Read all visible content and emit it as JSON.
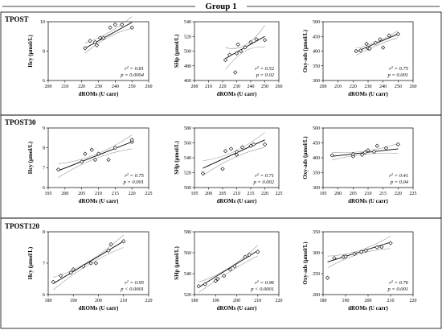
{
  "figure": {
    "group_title": "Group 1"
  },
  "panels": [
    {
      "label": "TPOST",
      "charts": [
        {
          "index": 0
        },
        {
          "index": 1
        },
        {
          "index": 2
        }
      ]
    },
    {
      "label": "TPOST30",
      "charts": [
        {
          "index": 3
        },
        {
          "index": 4
        },
        {
          "index": 5
        }
      ]
    },
    {
      "label": "TPOST120",
      "charts": [
        {
          "index": 6
        },
        {
          "index": 7
        },
        {
          "index": 8
        }
      ]
    }
  ],
  "chart_data": [
    {
      "type": "scatter",
      "panel": "TPOST",
      "xlabel": "dROMs (U carr)",
      "ylabel": "Hcy (µmol/L)",
      "xlim": [
        200,
        260
      ],
      "ylim": [
        6,
        10
      ],
      "xticks": [
        200,
        210,
        220,
        230,
        240,
        250,
        260
      ],
      "yticks": [
        6,
        8,
        10
      ],
      "x": [
        222,
        225,
        228,
        229,
        231,
        233,
        237,
        240,
        244,
        250
      ],
      "y": [
        8.2,
        8.7,
        8.6,
        8.4,
        8.9,
        8.9,
        9.6,
        9.8,
        9.8,
        9.6
      ],
      "fit": [
        [
          222,
          8.2
        ],
        [
          250,
          9.95
        ]
      ],
      "ci_upper": [
        [
          222,
          8.55
        ],
        [
          236,
          9.25
        ],
        [
          250,
          10.35
        ]
      ],
      "ci_lower": [
        [
          222,
          7.85
        ],
        [
          236,
          8.95
        ],
        [
          250,
          9.55
        ]
      ],
      "r2_text": "0.81",
      "p_text": "= 0.0004",
      "annot_pos": "bottom-right"
    },
    {
      "type": "scatter",
      "panel": "TPOST",
      "xlabel": "dROMs (U carr)",
      "ylabel": "SHp (µmol/L)",
      "xlim": [
        200,
        260
      ],
      "ylim": [
        460,
        540
      ],
      "xticks": [
        200,
        210,
        220,
        230,
        240,
        250,
        260
      ],
      "yticks": [
        460,
        480,
        500,
        520,
        540
      ],
      "x": [
        222,
        225,
        229,
        230,
        231,
        233,
        236,
        240,
        244,
        250
      ],
      "y": [
        488,
        495,
        471,
        497,
        509,
        500,
        505,
        512,
        516,
        515
      ],
      "fit": [
        [
          222,
          490
        ],
        [
          250,
          520
        ]
      ],
      "ci_upper": [
        [
          222,
          505
        ],
        [
          236,
          508
        ],
        [
          250,
          535
        ]
      ],
      "ci_lower": [
        [
          222,
          475
        ],
        [
          236,
          500
        ],
        [
          250,
          505
        ]
      ],
      "r2_text": "0.52",
      "p_text": "= 0.02",
      "annot_pos": "bottom-right"
    },
    {
      "type": "scatter",
      "panel": "TPOST",
      "xlabel": "dROMs (U carr)",
      "ylabel": "Oxy-ads (µmol/L)",
      "xlim": [
        200,
        260
      ],
      "ylim": [
        300,
        500
      ],
      "xticks": [
        200,
        210,
        220,
        230,
        240,
        250,
        260
      ],
      "yticks": [
        300,
        350,
        400,
        450,
        500
      ],
      "x": [
        222,
        225,
        229,
        230,
        231,
        235,
        238,
        240,
        244,
        250
      ],
      "y": [
        400,
        402,
        425,
        410,
        408,
        428,
        440,
        412,
        453,
        458
      ],
      "fit": [
        [
          222,
          398
        ],
        [
          250,
          458
        ]
      ],
      "ci_upper": [
        [
          222,
          410
        ],
        [
          236,
          432
        ],
        [
          250,
          470
        ]
      ],
      "ci_lower": [
        [
          222,
          386
        ],
        [
          236,
          420
        ],
        [
          250,
          446
        ]
      ],
      "r2_text": "0.75",
      "p_text": "= 0.001",
      "annot_pos": "bottom-right"
    },
    {
      "type": "scatter",
      "panel": "TPOST30",
      "xlabel": "dROMs (U carr)",
      "ylabel": "Hcy (µmol/L)",
      "xlim": [
        195,
        225
      ],
      "ylim": [
        6,
        9
      ],
      "xticks": [
        195,
        200,
        205,
        210,
        215,
        220,
        225
      ],
      "yticks": [
        6,
        7,
        8,
        9
      ],
      "x": [
        198,
        205,
        206,
        208,
        209,
        210,
        213,
        215,
        220,
        220
      ],
      "y": [
        6.9,
        7.3,
        7.7,
        7.9,
        7.4,
        7.7,
        7.4,
        8.0,
        8.3,
        8.4
      ],
      "fit": [
        [
          198,
          6.85
        ],
        [
          220,
          8.3
        ]
      ],
      "ci_upper": [
        [
          198,
          7.2
        ],
        [
          209,
          7.65
        ],
        [
          220,
          8.65
        ]
      ],
      "ci_lower": [
        [
          198,
          6.5
        ],
        [
          209,
          7.45
        ],
        [
          220,
          7.95
        ]
      ],
      "r2_text": "0.75",
      "p_text": "= 0.001",
      "annot_pos": "bottom-right"
    },
    {
      "type": "scatter",
      "panel": "TPOST30",
      "xlabel": "dROMs (U carr)",
      "ylabel": "SHp (µmol/L)",
      "xlim": [
        195,
        225
      ],
      "ylim": [
        500,
        580
      ],
      "xticks": [
        195,
        200,
        205,
        210,
        215,
        220,
        225
      ],
      "yticks": [
        500,
        520,
        540,
        560,
        580
      ],
      "x": [
        198,
        205,
        206,
        208,
        210,
        210,
        212,
        215,
        216,
        220
      ],
      "y": [
        519,
        525,
        549,
        552,
        548,
        544,
        554,
        556,
        558,
        558
      ],
      "fit": [
        [
          198,
          526
        ],
        [
          220,
          564
        ]
      ],
      "ci_upper": [
        [
          198,
          536
        ],
        [
          209,
          548
        ],
        [
          220,
          574
        ]
      ],
      "ci_lower": [
        [
          198,
          516
        ],
        [
          209,
          540
        ],
        [
          220,
          554
        ]
      ],
      "r2_text": "0.71",
      "p_text": "= 0.002",
      "annot_pos": "bottom-right"
    },
    {
      "type": "scatter",
      "panel": "TPOST30",
      "xlabel": "dROMs (U carr)",
      "ylabel": "Oxy-ads (µmol/L)",
      "xlim": [
        195,
        225
      ],
      "ylim": [
        300,
        500
      ],
      "xticks": [
        195,
        200,
        205,
        210,
        215,
        220,
        225
      ],
      "yticks": [
        300,
        350,
        400,
        450,
        500
      ],
      "x": [
        198,
        205,
        205,
        208,
        209,
        210,
        212,
        213,
        216,
        220
      ],
      "y": [
        408,
        405,
        412,
        410,
        418,
        425,
        420,
        440,
        432,
        445
      ],
      "fit": [
        [
          198,
          405
        ],
        [
          220,
          430
        ]
      ],
      "ci_upper": [
        [
          198,
          418
        ],
        [
          209,
          422
        ],
        [
          220,
          448
        ]
      ],
      "ci_lower": [
        [
          198,
          392
        ],
        [
          209,
          412
        ],
        [
          220,
          415
        ]
      ],
      "r2_text": "0.41",
      "p_text": "= 0.04",
      "annot_pos": "bottom-right"
    },
    {
      "type": "scatter",
      "panel": "TPOST120",
      "xlabel": "dROMs (U carr)",
      "ylabel": "Hcy (µmol/L)",
      "xlim": [
        180,
        220
      ],
      "ylim": [
        6,
        8
      ],
      "xticks": [
        180,
        190,
        200,
        210,
        220
      ],
      "yticks": [
        6,
        7,
        8
      ],
      "x": [
        182,
        185,
        189,
        190,
        194,
        197,
        199,
        204,
        205,
        210
      ],
      "y": [
        6.4,
        6.6,
        6.7,
        6.8,
        6.9,
        7.0,
        7.0,
        7.4,
        7.6,
        7.7
      ],
      "fit": [
        [
          182,
          6.35
        ],
        [
          210,
          7.7
        ]
      ],
      "ci_upper": [
        [
          182,
          6.55
        ],
        [
          196,
          7.05
        ],
        [
          210,
          7.9
        ]
      ],
      "ci_lower": [
        [
          182,
          6.15
        ],
        [
          196,
          6.95
        ],
        [
          210,
          7.5
        ]
      ],
      "r2_text": "0.95",
      "p_text": "< 0.0001",
      "annot_pos": "bottom-right"
    },
    {
      "type": "scatter",
      "panel": "TPOST120",
      "xlabel": "dROMs (U carr)",
      "ylabel": "SHp (µmol/L)",
      "xlim": [
        180,
        220
      ],
      "ylim": [
        520,
        580
      ],
      "xticks": [
        180,
        190,
        200,
        210,
        220
      ],
      "yticks": [
        520,
        540,
        560,
        580
      ],
      "x": [
        182,
        185,
        190,
        191,
        194,
        197,
        199,
        204,
        206,
        210
      ],
      "y": [
        528,
        530,
        533,
        535,
        538,
        544,
        547,
        556,
        558,
        561
      ],
      "fit": [
        [
          182,
          527
        ],
        [
          210,
          562
        ]
      ],
      "ci_upper": [
        [
          182,
          532
        ],
        [
          196,
          545
        ],
        [
          210,
          567
        ]
      ],
      "ci_lower": [
        [
          182,
          522
        ],
        [
          196,
          541
        ],
        [
          210,
          557
        ]
      ],
      "r2_text": "0.96",
      "p_text": "< 0.0001",
      "annot_pos": "bottom-right"
    },
    {
      "type": "scatter",
      "panel": "TPOST120",
      "xlabel": "dROMs (U carr)",
      "ylabel": "Oxy-ads (µmol/L)",
      "xlim": [
        180,
        220
      ],
      "ylim": [
        200,
        350
      ],
      "xticks": [
        180,
        190,
        200,
        210,
        220
      ],
      "yticks": [
        200,
        250,
        300,
        350
      ],
      "x": [
        182,
        185,
        189,
        190,
        194,
        197,
        199,
        204,
        206,
        210
      ],
      "y": [
        240,
        287,
        290,
        291,
        297,
        302,
        305,
        313,
        314,
        323
      ],
      "fit": [
        [
          182,
          278
        ],
        [
          210,
          325
        ]
      ],
      "ci_upper": [
        [
          182,
          292
        ],
        [
          196,
          305
        ],
        [
          210,
          340
        ]
      ],
      "ci_lower": [
        [
          182,
          264
        ],
        [
          196,
          297
        ],
        [
          210,
          310
        ]
      ],
      "r2_text": "0.76",
      "p_text": "= 0.001",
      "annot_pos": "bottom-right"
    }
  ]
}
